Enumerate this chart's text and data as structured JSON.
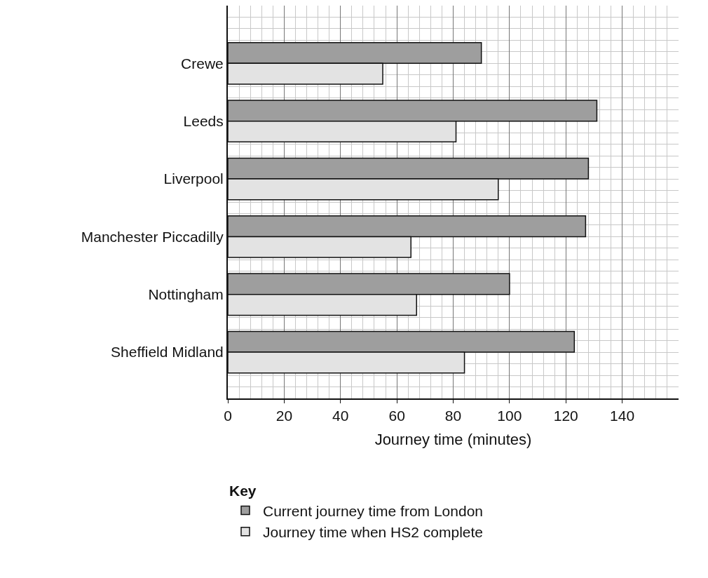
{
  "chart_data": {
    "type": "bar",
    "orientation": "horizontal",
    "xlabel": "Journey time (minutes)",
    "legend_title": "Key",
    "categories": [
      "Crewe",
      "Leeds",
      "Liverpool",
      "Manchester Piccadilly",
      "Nottingham",
      "Sheffield Midland"
    ],
    "series": [
      {
        "name": "Current journey time from London",
        "color": "#9e9e9e",
        "values": [
          90,
          131,
          128,
          127,
          100,
          123
        ]
      },
      {
        "name": "Journey time when HS2 complete",
        "color": "#e3e3e3",
        "values": [
          55,
          81,
          96,
          65,
          67,
          84
        ]
      }
    ],
    "xlim": [
      0,
      160
    ],
    "xticks": [
      0,
      20,
      40,
      60,
      80,
      100,
      120,
      140
    ],
    "grid": true,
    "legend": "bottom left"
  }
}
